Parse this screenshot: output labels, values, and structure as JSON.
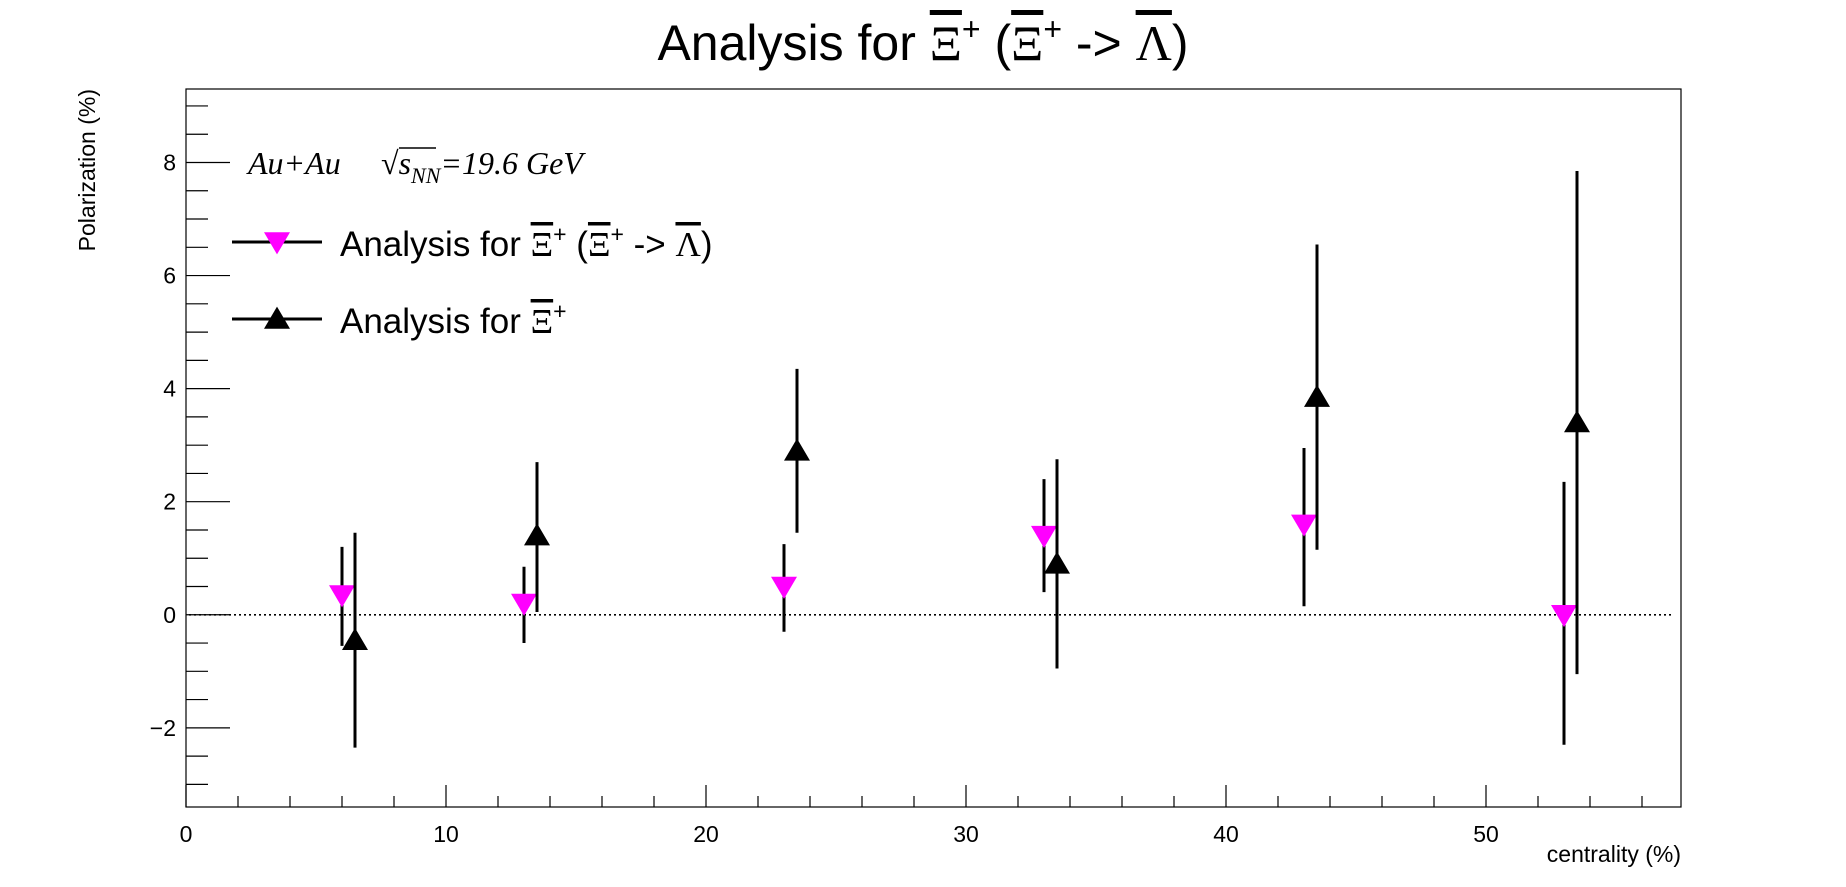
{
  "chart_data": {
    "type": "scatter",
    "title_parts": {
      "prefix": "Analysis for ",
      "xi_symbol": "Ξ",
      "plus": "+",
      "open_paren": " (",
      "arrow": " -> ",
      "lambda_symbol": "Λ",
      "close_paren": ")"
    },
    "xlabel": "centrality (%)",
    "ylabel": "Polarization (%)",
    "xlim": [
      0,
      57.5
    ],
    "ylim": [
      -3.4,
      9.3
    ],
    "x_ticks": [
      0,
      10,
      20,
      30,
      40,
      50
    ],
    "x_tick_labels": [
      "0",
      "10",
      "20",
      "30",
      "40",
      "50"
    ],
    "y_ticks": [
      -2,
      0,
      2,
      4,
      6,
      8
    ],
    "y_tick_labels": [
      "−2",
      "0",
      "2",
      "4",
      "6",
      "8"
    ],
    "zero_reference_line": "dotted",
    "grid": false,
    "legend_placement": "top-left",
    "annotation": {
      "system": "Au+Au",
      "sqrt_symbol": "√",
      "s": "s",
      "nn": "NN",
      "energy": "=19.6 GeV"
    },
    "series": [
      {
        "legend_prefix": "Analysis for ",
        "legend_has_decay": true,
        "marker": "triangle-down",
        "color": "#ff00ff",
        "points": [
          {
            "x": 6,
            "y": 0.35,
            "ylow": -0.55,
            "yhigh": 1.2
          },
          {
            "x": 13,
            "y": 0.2,
            "ylow": -0.5,
            "yhigh": 0.85
          },
          {
            "x": 23,
            "y": 0.5,
            "ylow": -0.3,
            "yhigh": 1.25
          },
          {
            "x": 33,
            "y": 1.4,
            "ylow": 0.4,
            "yhigh": 2.4
          },
          {
            "x": 43,
            "y": 1.6,
            "ylow": 0.15,
            "yhigh": 2.95
          },
          {
            "x": 53,
            "y": 0.0,
            "ylow": -2.3,
            "yhigh": 2.35
          }
        ]
      },
      {
        "legend_prefix": "Analysis for ",
        "legend_has_decay": false,
        "marker": "triangle-up",
        "color": "#000000",
        "points": [
          {
            "x": 6.5,
            "y": -0.45,
            "ylow": -2.35,
            "yhigh": 1.45
          },
          {
            "x": 13.5,
            "y": 1.4,
            "ylow": 0.05,
            "yhigh": 2.7
          },
          {
            "x": 23.5,
            "y": 2.9,
            "ylow": 1.45,
            "yhigh": 4.35
          },
          {
            "x": 33.5,
            "y": 0.9,
            "ylow": -0.95,
            "yhigh": 2.75
          },
          {
            "x": 43.5,
            "y": 3.85,
            "ylow": 1.15,
            "yhigh": 6.55
          },
          {
            "x": 53.5,
            "y": 3.4,
            "ylow": -1.05,
            "yhigh": 7.85
          }
        ]
      }
    ]
  }
}
